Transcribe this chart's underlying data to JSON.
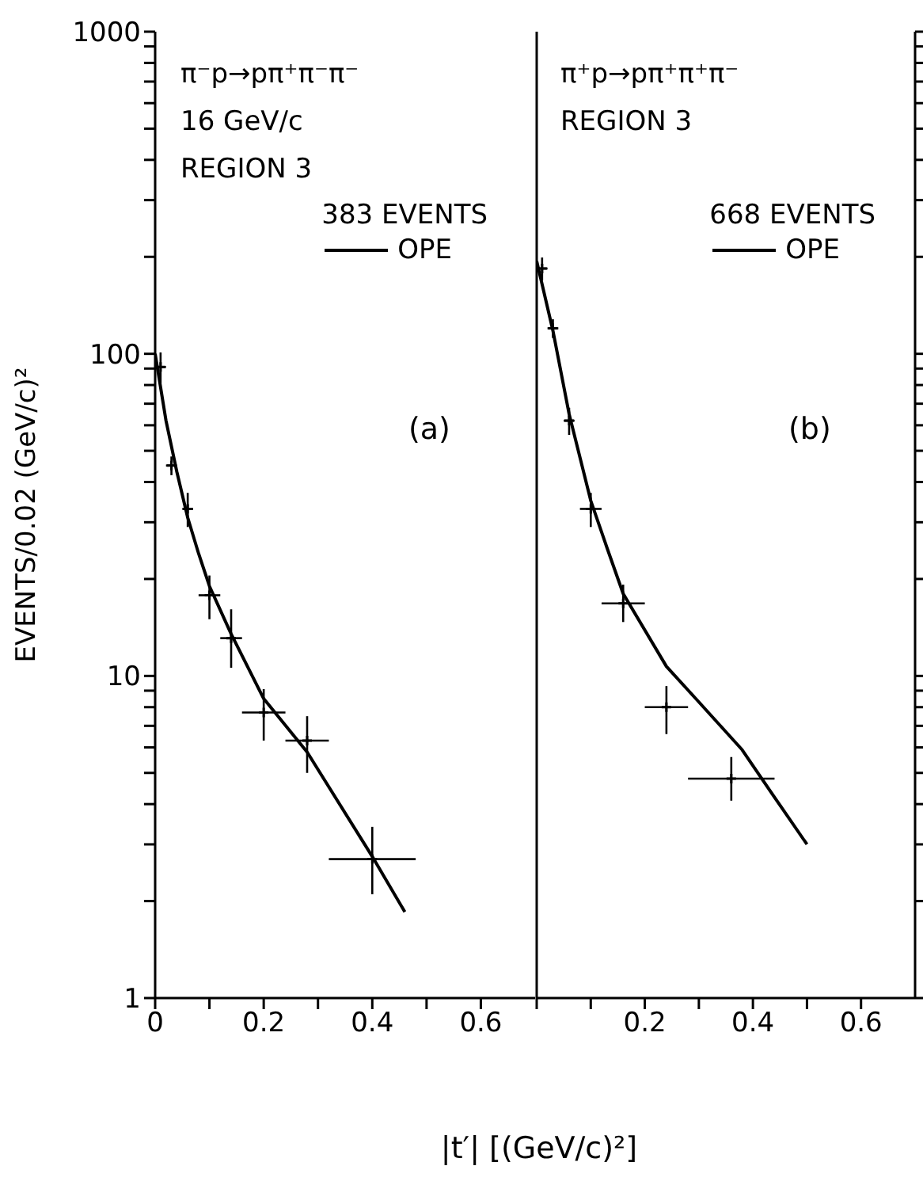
{
  "chart_data": [
    {
      "type": "scatter",
      "ylabel": "EVENTS/0.02 (GeV/c)²",
      "xlabel": "|t′| [(GeV/c)²]",
      "legend_title": "383 EVENTS",
      "legend": "top right",
      "log": "y",
      "marker": "cross",
      "annotations": [
        "π⁻p→pπ⁺π⁻π⁻",
        "16 GeV/c",
        "REGION 3",
        "(a)"
      ],
      "xlim": [
        0,
        0.7
      ],
      "xticks": [
        0,
        {
          "value": 0.1,
          "label": null
        },
        0.2,
        {
          "value": 0.3,
          "label": null
        },
        0.4,
        {
          "value": 0.5,
          "label": null
        },
        0.6
      ],
      "ylim": [
        1,
        1000
      ],
      "yticks": [
        1,
        {
          "value": 2,
          "label": null
        },
        {
          "value": 3,
          "label": null
        },
        {
          "value": 4,
          "label": null
        },
        {
          "value": 5,
          "label": null
        },
        {
          "value": 6,
          "label": null
        },
        {
          "value": 7,
          "label": null
        },
        {
          "value": 8,
          "label": null
        },
        {
          "value": 9,
          "label": null
        },
        10,
        {
          "value": 20,
          "label": null
        },
        {
          "value": 30,
          "label": null
        },
        {
          "value": 40,
          "label": null
        },
        {
          "value": 50,
          "label": null
        },
        {
          "value": 60,
          "label": null
        },
        {
          "value": 70,
          "label": null
        },
        {
          "value": 80,
          "label": null
        },
        {
          "value": 90,
          "label": null
        },
        100,
        {
          "value": 200,
          "label": null
        },
        {
          "value": 300,
          "label": null
        },
        {
          "value": 400,
          "label": null
        },
        {
          "value": 500,
          "label": null
        },
        {
          "value": 600,
          "label": null
        },
        {
          "value": 700,
          "label": null
        },
        {
          "value": 800,
          "label": null
        },
        {
          "value": 900,
          "label": null
        },
        1000
      ],
      "series": [
        {
          "color": "#000000",
          "x": [
            0.01,
            0.03,
            0.06,
            0.1,
            0.14,
            0.2,
            0.28,
            0.4
          ],
          "values": [
            91,
            45,
            33,
            17.8,
            13.1,
            7.7,
            6.3,
            2.7
          ],
          "errors": [
            10,
            3,
            4,
            [
              15,
              20.5
            ],
            [
              10.6,
              16.1
            ],
            [
              6.3,
              9.1
            ],
            [
              5,
              7.5
            ],
            [
              2.1,
              3.4
            ]
          ],
          "xerrors": [
            0.01,
            0.01,
            0.01,
            0.02,
            0.02,
            0.04,
            0.04,
            0.08
          ]
        },
        {
          "name": "OPE",
          "type": "line",
          "marker": "none",
          "color": "#000000",
          "x": [
            0,
            0.02,
            0.04,
            0.06,
            0.08,
            0.1,
            0.14,
            0.2,
            0.28,
            0.4,
            0.46
          ],
          "values": [
            100,
            62,
            43,
            31,
            24,
            19,
            13.5,
            8.5,
            5.8,
            2.75,
            1.85
          ]
        }
      ]
    },
    {
      "type": "scatter",
      "legend_title": "668 EVENTS",
      "legend": "top right",
      "log": "y",
      "marker": "cross",
      "tick_labels": "x",
      "annotations": [
        "π⁺p→pπ⁺π⁺π⁻",
        "REGION 3",
        "(b)"
      ],
      "xlim": [
        0,
        0.7
      ],
      "xticks": [
        {
          "value": 0,
          "label": null
        },
        {
          "value": 0.1,
          "label": null
        },
        0.2,
        {
          "value": 0.3,
          "label": null
        },
        0.4,
        {
          "value": 0.5,
          "label": null
        },
        0.6
      ],
      "ylim": [
        1,
        1000
      ],
      "yticks": [
        {
          "value": 1,
          "label": null
        },
        {
          "value": 2,
          "label": null
        },
        {
          "value": 3,
          "label": null
        },
        {
          "value": 4,
          "label": null
        },
        {
          "value": 5,
          "label": null
        },
        {
          "value": 6,
          "label": null
        },
        {
          "value": 7,
          "label": null
        },
        {
          "value": 8,
          "label": null
        },
        {
          "value": 9,
          "label": null
        },
        {
          "value": 10,
          "label": null
        },
        {
          "value": 20,
          "label": null
        },
        {
          "value": 30,
          "label": null
        },
        {
          "value": 40,
          "label": null
        },
        {
          "value": 50,
          "label": null
        },
        {
          "value": 60,
          "label": null
        },
        {
          "value": 70,
          "label": null
        },
        {
          "value": 80,
          "label": null
        },
        {
          "value": 90,
          "label": null
        },
        {
          "value": 100,
          "label": null
        },
        {
          "value": 200,
          "label": null
        },
        {
          "value": 300,
          "label": null
        },
        {
          "value": 400,
          "label": null
        },
        {
          "value": 500,
          "label": null
        },
        {
          "value": 600,
          "label": null
        },
        {
          "value": 700,
          "label": null
        },
        {
          "value": 800,
          "label": null
        },
        {
          "value": 900,
          "label": null
        },
        {
          "value": 1000,
          "label": null
        }
      ],
      "series": [
        {
          "color": "#000000",
          "x": [
            0.01,
            0.03,
            0.06,
            0.1,
            0.16,
            0.24,
            0.36
          ],
          "values": [
            184,
            120,
            62,
            33,
            16.8,
            8,
            4.8
          ],
          "errors": [
            15,
            8,
            6,
            4,
            [
              14.7,
              19.2
            ],
            [
              6.6,
              9.3
            ],
            [
              4.1,
              5.6
            ]
          ],
          "xerrors": [
            0.01,
            0.01,
            0.01,
            0.02,
            0.04,
            0.04,
            0.08
          ]
        },
        {
          "name": "OPE",
          "type": "line",
          "marker": "none",
          "color": "#000000",
          "x": [
            0,
            0.03,
            0.06,
            0.1,
            0.13,
            0.16,
            0.24,
            0.3,
            0.38,
            0.44,
            0.5
          ],
          "values": [
            194,
            118,
            65,
            35,
            25,
            18,
            10.7,
            8.3,
            5.9,
            4.2,
            3
          ]
        }
      ]
    }
  ]
}
